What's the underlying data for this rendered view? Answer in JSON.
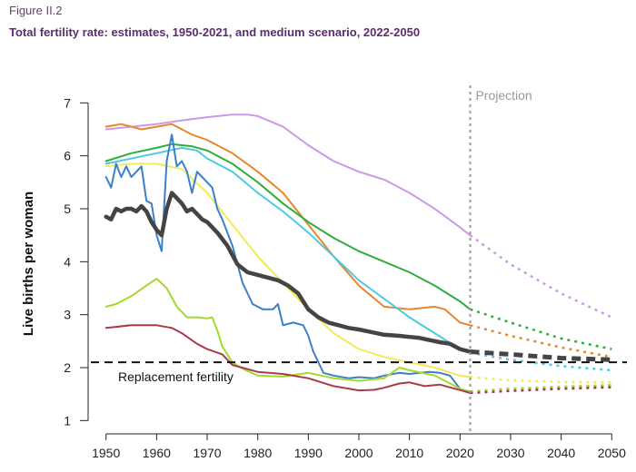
{
  "figure_label": "Figure II.2",
  "title": "Total fertility rate: estimates, 1950-2021, and medium scenario, 2022-2050",
  "chart_data": {
    "type": "line",
    "ylabel": "Live births per woman",
    "xlabel": "",
    "xlim": [
      1947,
      2053
    ],
    "ylim": [
      0.8,
      7.4
    ],
    "xticks": [
      1950,
      1960,
      1970,
      1980,
      1990,
      2000,
      2010,
      2020,
      2030,
      2040,
      2050
    ],
    "yticks": [
      1,
      2,
      3,
      4,
      5,
      6,
      7
    ],
    "grid": false,
    "projection_start": 2022,
    "projection_label": "Projection",
    "reference_line": {
      "value": 2.1,
      "label": "Replacement fertility",
      "color": "#111111"
    },
    "series": [
      {
        "color": "#cc99e6",
        "estimates": [
          [
            1950,
            6.5
          ],
          [
            1955,
            6.55
          ],
          [
            1960,
            6.6
          ],
          [
            1965,
            6.67
          ],
          [
            1970,
            6.73
          ],
          [
            1975,
            6.78
          ],
          [
            1978,
            6.78
          ],
          [
            1980,
            6.75
          ],
          [
            1985,
            6.55
          ],
          [
            1990,
            6.2
          ],
          [
            1995,
            5.9
          ],
          [
            2000,
            5.7
          ],
          [
            2005,
            5.55
          ],
          [
            2010,
            5.3
          ],
          [
            2015,
            5.0
          ],
          [
            2020,
            4.65
          ],
          [
            2022,
            4.5
          ]
        ],
        "projection": [
          [
            2022,
            4.5
          ],
          [
            2030,
            3.95
          ],
          [
            2040,
            3.4
          ],
          [
            2050,
            2.95
          ]
        ]
      },
      {
        "color": "#e8862e",
        "estimates": [
          [
            1950,
            6.55
          ],
          [
            1953,
            6.6
          ],
          [
            1957,
            6.5
          ],
          [
            1960,
            6.55
          ],
          [
            1963,
            6.6
          ],
          [
            1967,
            6.4
          ],
          [
            1970,
            6.3
          ],
          [
            1975,
            6.05
          ],
          [
            1980,
            5.7
          ],
          [
            1985,
            5.3
          ],
          [
            1990,
            4.7
          ],
          [
            1995,
            4.1
          ],
          [
            2000,
            3.55
          ],
          [
            2005,
            3.15
          ],
          [
            2010,
            3.1
          ],
          [
            2015,
            3.15
          ],
          [
            2017,
            3.1
          ],
          [
            2020,
            2.85
          ],
          [
            2022,
            2.8
          ]
        ],
        "projection": [
          [
            2022,
            2.8
          ],
          [
            2030,
            2.6
          ],
          [
            2040,
            2.38
          ],
          [
            2050,
            2.2
          ]
        ]
      },
      {
        "color": "#2fae3e",
        "estimates": [
          [
            1950,
            5.9
          ],
          [
            1955,
            6.05
          ],
          [
            1960,
            6.15
          ],
          [
            1963,
            6.22
          ],
          [
            1967,
            6.18
          ],
          [
            1970,
            6.1
          ],
          [
            1975,
            5.85
          ],
          [
            1980,
            5.5
          ],
          [
            1985,
            5.1
          ],
          [
            1990,
            4.75
          ],
          [
            1995,
            4.45
          ],
          [
            2000,
            4.2
          ],
          [
            2005,
            4.0
          ],
          [
            2010,
            3.8
          ],
          [
            2015,
            3.55
          ],
          [
            2020,
            3.25
          ],
          [
            2022,
            3.1
          ]
        ],
        "projection": [
          [
            2022,
            3.1
          ],
          [
            2030,
            2.85
          ],
          [
            2040,
            2.55
          ],
          [
            2050,
            2.35
          ]
        ]
      },
      {
        "color": "#4fc9e3",
        "estimates": [
          [
            1950,
            5.85
          ],
          [
            1955,
            5.95
          ],
          [
            1960,
            6.05
          ],
          [
            1965,
            6.15
          ],
          [
            1968,
            6.1
          ],
          [
            1970,
            5.95
          ],
          [
            1975,
            5.7
          ],
          [
            1980,
            5.3
          ],
          [
            1985,
            4.95
          ],
          [
            1990,
            4.55
          ],
          [
            1995,
            4.1
          ],
          [
            2000,
            3.65
          ],
          [
            2005,
            3.3
          ],
          [
            2010,
            2.95
          ],
          [
            2015,
            2.65
          ],
          [
            2020,
            2.35
          ],
          [
            2022,
            2.28
          ]
        ],
        "projection": [
          [
            2022,
            2.28
          ],
          [
            2030,
            2.15
          ],
          [
            2040,
            2.03
          ],
          [
            2050,
            1.95
          ]
        ]
      },
      {
        "color": "#f2ea5a",
        "estimates": [
          [
            1950,
            5.8
          ],
          [
            1955,
            5.85
          ],
          [
            1960,
            5.85
          ],
          [
            1965,
            5.75
          ],
          [
            1970,
            5.3
          ],
          [
            1975,
            4.7
          ],
          [
            1980,
            4.1
          ],
          [
            1985,
            3.6
          ],
          [
            1990,
            3.1
          ],
          [
            1995,
            2.65
          ],
          [
            2000,
            2.35
          ],
          [
            2005,
            2.2
          ],
          [
            2010,
            2.1
          ],
          [
            2015,
            2.0
          ],
          [
            2020,
            1.85
          ],
          [
            2022,
            1.82
          ]
        ],
        "projection": [
          [
            2022,
            1.82
          ],
          [
            2030,
            1.76
          ],
          [
            2040,
            1.73
          ],
          [
            2050,
            1.72
          ]
        ]
      },
      {
        "color": "#3a80c9",
        "estimates": [
          [
            1950,
            5.6
          ],
          [
            1951,
            5.4
          ],
          [
            1952,
            5.85
          ],
          [
            1953,
            5.6
          ],
          [
            1954,
            5.8
          ],
          [
            1955,
            5.6
          ],
          [
            1956,
            5.7
          ],
          [
            1957,
            5.8
          ],
          [
            1958,
            5.15
          ],
          [
            1959,
            5.1
          ],
          [
            1960,
            4.5
          ],
          [
            1961,
            4.2
          ],
          [
            1962,
            5.9
          ],
          [
            1963,
            6.4
          ],
          [
            1964,
            5.8
          ],
          [
            1965,
            5.9
          ],
          [
            1966,
            5.7
          ],
          [
            1967,
            5.3
          ],
          [
            1968,
            5.7
          ],
          [
            1969,
            5.6
          ],
          [
            1970,
            5.5
          ],
          [
            1971,
            5.4
          ],
          [
            1972,
            5.0
          ],
          [
            1973,
            4.8
          ],
          [
            1975,
            4.3
          ],
          [
            1977,
            3.6
          ],
          [
            1979,
            3.2
          ],
          [
            1981,
            3.1
          ],
          [
            1983,
            3.1
          ],
          [
            1984,
            3.2
          ],
          [
            1985,
            2.8
          ],
          [
            1987,
            2.85
          ],
          [
            1989,
            2.8
          ],
          [
            1990,
            2.6
          ],
          [
            1991,
            2.3
          ],
          [
            1992,
            2.1
          ],
          [
            1993,
            1.9
          ],
          [
            1995,
            1.85
          ],
          [
            1998,
            1.8
          ],
          [
            2000,
            1.82
          ],
          [
            2003,
            1.8
          ],
          [
            2005,
            1.85
          ],
          [
            2008,
            1.9
          ],
          [
            2010,
            1.88
          ],
          [
            2012,
            1.9
          ],
          [
            2014,
            1.92
          ],
          [
            2016,
            1.9
          ],
          [
            2018,
            1.85
          ],
          [
            2020,
            1.6
          ],
          [
            2021,
            1.55
          ],
          [
            2022,
            1.55
          ]
        ],
        "projection": [
          [
            2022,
            1.55
          ],
          [
            2030,
            1.6
          ],
          [
            2040,
            1.63
          ],
          [
            2050,
            1.66
          ]
        ]
      },
      {
        "color": "#a6d82e",
        "estimates": [
          [
            1950,
            3.15
          ],
          [
            1952,
            3.2
          ],
          [
            1955,
            3.35
          ],
          [
            1958,
            3.55
          ],
          [
            1960,
            3.68
          ],
          [
            1962,
            3.5
          ],
          [
            1964,
            3.15
          ],
          [
            1966,
            2.95
          ],
          [
            1968,
            2.95
          ],
          [
            1970,
            2.93
          ],
          [
            1971,
            2.95
          ],
          [
            1972,
            2.7
          ],
          [
            1973,
            2.4
          ],
          [
            1975,
            2.1
          ],
          [
            1977,
            1.98
          ],
          [
            1980,
            1.85
          ],
          [
            1985,
            1.83
          ],
          [
            1990,
            1.9
          ],
          [
            1995,
            1.8
          ],
          [
            2000,
            1.75
          ],
          [
            2005,
            1.8
          ],
          [
            2008,
            2.0
          ],
          [
            2010,
            1.95
          ],
          [
            2015,
            1.85
          ],
          [
            2020,
            1.6
          ],
          [
            2022,
            1.55
          ]
        ],
        "projection": [
          [
            2022,
            1.55
          ],
          [
            2030,
            1.6
          ],
          [
            2040,
            1.64
          ],
          [
            2050,
            1.67
          ]
        ]
      },
      {
        "color": "#a83a4a",
        "estimates": [
          [
            1950,
            2.75
          ],
          [
            1955,
            2.8
          ],
          [
            1960,
            2.8
          ],
          [
            1963,
            2.75
          ],
          [
            1965,
            2.65
          ],
          [
            1968,
            2.45
          ],
          [
            1970,
            2.35
          ],
          [
            1973,
            2.25
          ],
          [
            1975,
            2.05
          ],
          [
            1980,
            1.92
          ],
          [
            1985,
            1.88
          ],
          [
            1990,
            1.8
          ],
          [
            1995,
            1.65
          ],
          [
            2000,
            1.57
          ],
          [
            2003,
            1.58
          ],
          [
            2005,
            1.62
          ],
          [
            2008,
            1.7
          ],
          [
            2010,
            1.72
          ],
          [
            2013,
            1.65
          ],
          [
            2016,
            1.68
          ],
          [
            2019,
            1.6
          ],
          [
            2021,
            1.55
          ],
          [
            2022,
            1.52
          ]
        ],
        "projection": [
          [
            2022,
            1.52
          ],
          [
            2030,
            1.56
          ],
          [
            2040,
            1.6
          ],
          [
            2050,
            1.63
          ]
        ]
      },
      {
        "color": "#444444",
        "bold": true,
        "estimates": [
          [
            1950,
            4.85
          ],
          [
            1951,
            4.8
          ],
          [
            1952,
            5.0
          ],
          [
            1953,
            4.95
          ],
          [
            1954,
            5.0
          ],
          [
            1955,
            5.0
          ],
          [
            1956,
            4.95
          ],
          [
            1957,
            5.05
          ],
          [
            1958,
            4.95
          ],
          [
            1959,
            4.75
          ],
          [
            1960,
            4.6
          ],
          [
            1961,
            4.5
          ],
          [
            1962,
            5.0
          ],
          [
            1963,
            5.3
          ],
          [
            1964,
            5.2
          ],
          [
            1965,
            5.1
          ],
          [
            1966,
            4.95
          ],
          [
            1967,
            5.0
          ],
          [
            1968,
            4.9
          ],
          [
            1969,
            4.8
          ],
          [
            1970,
            4.75
          ],
          [
            1972,
            4.55
          ],
          [
            1974,
            4.3
          ],
          [
            1976,
            3.95
          ],
          [
            1978,
            3.8
          ],
          [
            1980,
            3.75
          ],
          [
            1982,
            3.7
          ],
          [
            1984,
            3.65
          ],
          [
            1986,
            3.55
          ],
          [
            1988,
            3.4
          ],
          [
            1990,
            3.1
          ],
          [
            1992,
            2.95
          ],
          [
            1994,
            2.85
          ],
          [
            1996,
            2.8
          ],
          [
            1998,
            2.75
          ],
          [
            2000,
            2.72
          ],
          [
            2002,
            2.68
          ],
          [
            2005,
            2.62
          ],
          [
            2008,
            2.6
          ],
          [
            2010,
            2.58
          ],
          [
            2012,
            2.56
          ],
          [
            2014,
            2.52
          ],
          [
            2016,
            2.48
          ],
          [
            2018,
            2.45
          ],
          [
            2020,
            2.35
          ],
          [
            2022,
            2.3
          ]
        ],
        "projection": [
          [
            2022,
            2.3
          ],
          [
            2030,
            2.25
          ],
          [
            2040,
            2.18
          ],
          [
            2050,
            2.15
          ]
        ]
      }
    ]
  }
}
